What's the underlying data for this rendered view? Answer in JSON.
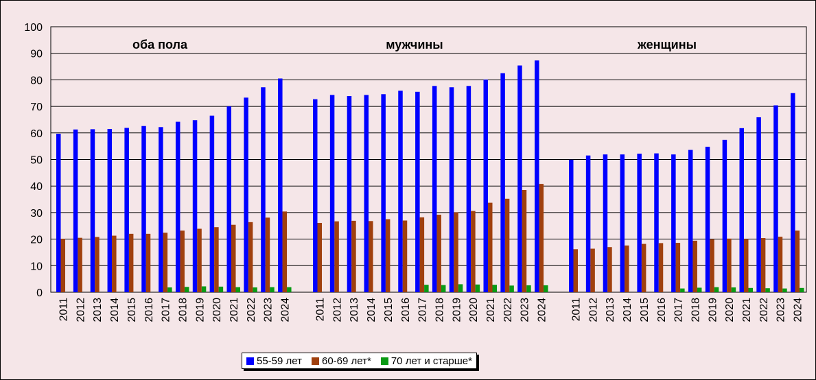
{
  "chart_data": {
    "type": "bar",
    "ylim": [
      0,
      100
    ],
    "yticks": [
      "0",
      "10",
      "20",
      "30",
      "40",
      "50",
      "60",
      "70",
      "80",
      "90",
      "100"
    ],
    "grid": true,
    "legend_position": "bottom",
    "categories": [
      "2011",
      "2012",
      "2013",
      "2014",
      "2015",
      "2016",
      "2017",
      "2018",
      "2019",
      "2020",
      "2021",
      "2022",
      "2023",
      "2024"
    ],
    "colors": {
      "55-59": "#0000ff",
      "60-69": "#a0400e",
      "70+": "#0a9a14",
      "background": "#f5e6e8",
      "grid": "#000000"
    },
    "legend": [
      {
        "key": "55-59",
        "label": "55-59 лет"
      },
      {
        "key": "60-69",
        "label": "60-69 лет*"
      },
      {
        "key": "70+",
        "label": "70 лет и старше*"
      }
    ],
    "groups": [
      {
        "title": "оба пола",
        "series": {
          "55-59": [
            59.7,
            61.3,
            61.4,
            61.5,
            61.9,
            62.6,
            62.2,
            64.2,
            64.8,
            66.5,
            70.0,
            73.3,
            77.2,
            80.5
          ],
          "60-69": [
            20.1,
            20.5,
            20.8,
            21.3,
            22.0,
            22.0,
            22.4,
            23.2,
            23.9,
            24.5,
            25.4,
            26.4,
            28.1,
            30.4
          ],
          "70+": [
            null,
            null,
            null,
            null,
            null,
            null,
            1.8,
            2.0,
            2.2,
            2.1,
            1.9,
            1.8,
            1.9,
            1.9
          ]
        }
      },
      {
        "title": "мужчины",
        "series": {
          "55-59": [
            72.7,
            74.3,
            73.9,
            74.3,
            74.6,
            75.9,
            75.5,
            77.7,
            77.2,
            77.7,
            80.1,
            82.5,
            85.4,
            87.3
          ],
          "60-69": [
            26.1,
            26.7,
            26.9,
            26.8,
            27.5,
            27.0,
            28.2,
            29.2,
            30.1,
            30.6,
            33.7,
            35.2,
            38.5,
            40.8
          ],
          "70+": [
            null,
            null,
            null,
            null,
            null,
            null,
            2.8,
            2.7,
            3.0,
            2.9,
            2.8,
            2.5,
            2.6,
            2.6
          ]
        }
      },
      {
        "title": "женщины",
        "series": {
          "55-59": [
            49.9,
            51.5,
            51.9,
            51.9,
            52.2,
            52.3,
            51.9,
            53.6,
            54.8,
            57.4,
            61.8,
            65.9,
            70.4,
            75.0
          ],
          "60-69": [
            16.2,
            16.4,
            17.0,
            17.6,
            18.2,
            18.5,
            18.6,
            19.4,
            19.9,
            20.2,
            20.0,
            20.4,
            20.9,
            23.2
          ],
          "70+": [
            null,
            null,
            null,
            null,
            null,
            null,
            1.4,
            1.7,
            1.9,
            1.8,
            1.6,
            1.5,
            1.4,
            1.6
          ]
        }
      }
    ]
  }
}
